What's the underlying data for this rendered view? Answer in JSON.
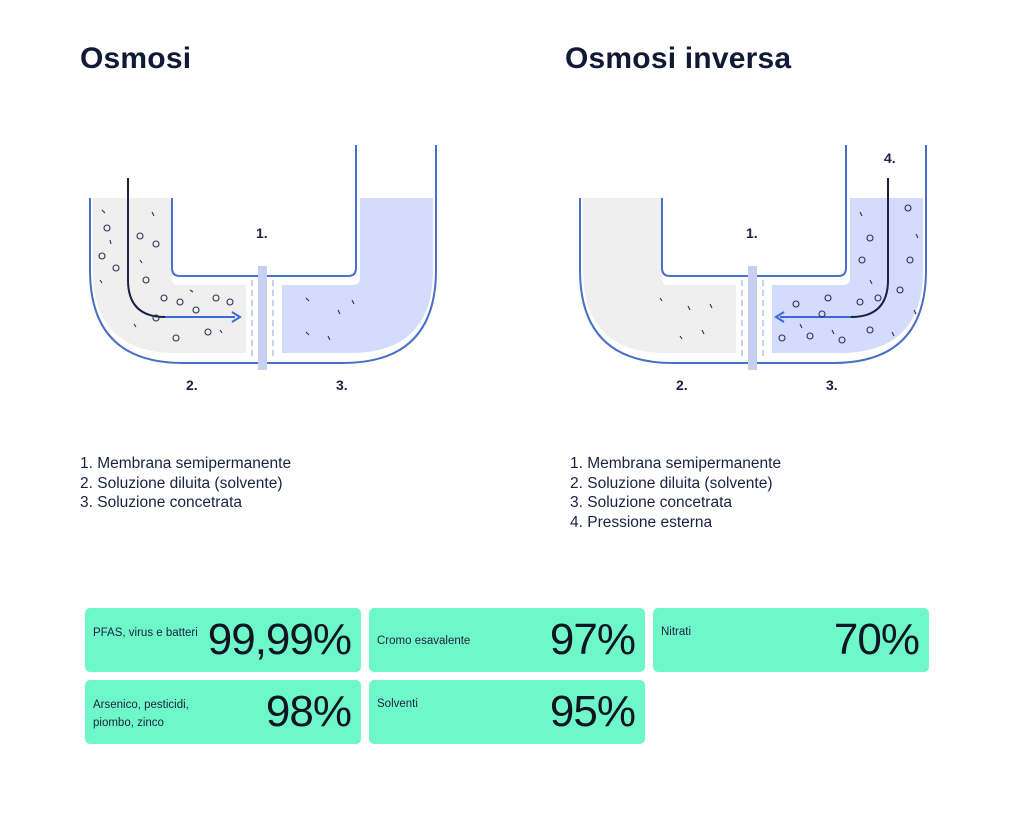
{
  "osmosis": {
    "title": "Osmosi",
    "labels": {
      "membrane": "1.",
      "dilute": "2.",
      "concentrated": "3."
    },
    "legend": [
      "1. Membrana semipermanente",
      "2. Soluzione diluita (solvente)",
      "3. Soluzione concetrata"
    ]
  },
  "reverse_osmosis": {
    "title": "Osmosi inversa",
    "labels": {
      "membrane": "1.",
      "dilute": "2.",
      "concentrated": "3.",
      "pressure": "4."
    },
    "legend": [
      "1. Membrana semipermanente",
      "2. Soluzione diluita (solvente)",
      "3. Soluzione concetrata",
      "4. Pressione esterna"
    ]
  },
  "removal_rates": [
    {
      "label": "PFAS, virus e batteri",
      "value": "99,99%"
    },
    {
      "label": "Cromo esavalente",
      "value": "97%"
    },
    {
      "label": "Nitrati",
      "value": "70%"
    },
    {
      "label": "Arsenico, pesticidi, piombo, zinco",
      "value": "98%"
    },
    {
      "label": "Solventi",
      "value": "95%"
    }
  ],
  "colors": {
    "outline": "#4a6fc4",
    "concentrated_fill": "#d3dcfc",
    "dilute_fill": "#efefef",
    "arrow": "#3d68d6",
    "card": "#6ef7c8"
  }
}
